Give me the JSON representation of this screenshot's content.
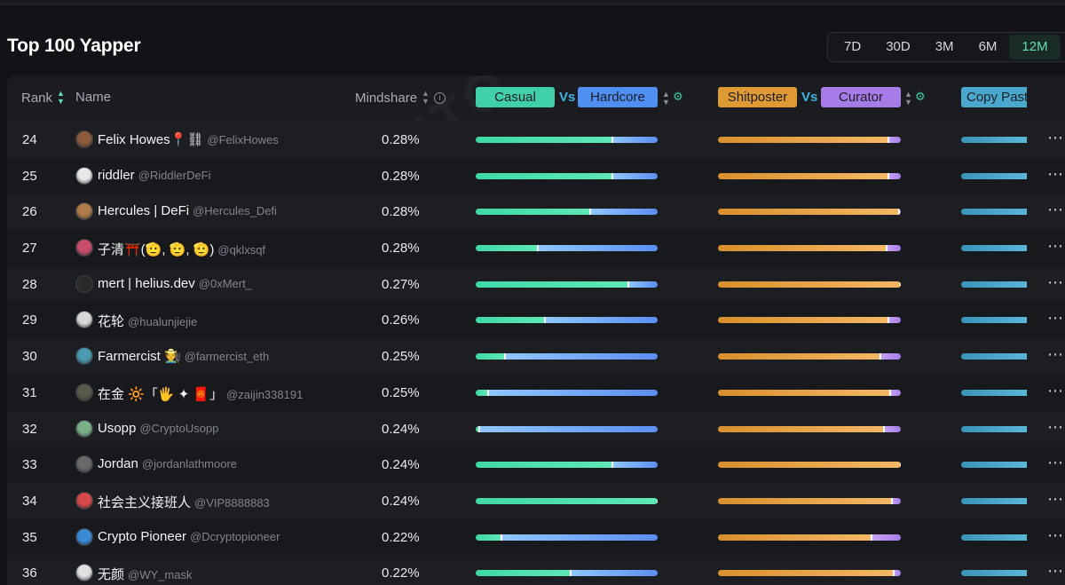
{
  "page": {
    "title": "Top 100 Yapper",
    "watermark": "KAITO"
  },
  "time_ranges": {
    "options": [
      "7D",
      "30D",
      "3M",
      "6M",
      "12M"
    ],
    "active": "12M"
  },
  "table": {
    "headers": {
      "rank": "Rank",
      "name": "Name",
      "mindshare": "Mindshare",
      "vs": "Vs",
      "casual": "Casual",
      "hardcore": "Hardcore",
      "shitposter": "Shitposter",
      "curator": "Curator",
      "copy_paste": "Copy Past"
    },
    "colors": {
      "casual": "#3fd0a8",
      "hardcore": "#4f8ff2",
      "shitposter": "#e09a33",
      "curator": "#a77ce8",
      "copy_paste": "#4aa8cf",
      "vs": "#3fb4e0",
      "active_range": "#5ee0b2"
    },
    "rows": [
      {
        "rank": "24",
        "display": "Felix Howes📍⛓",
        "handle": "@FelixHowes",
        "mindshare": "0.28%",
        "casual_frac": 0.75,
        "shit_frac": 0.93,
        "avatar_color": "#8a5a3a"
      },
      {
        "rank": "25",
        "display": "riddler",
        "handle": "@RiddlerDeFi",
        "mindshare": "0.28%",
        "casual_frac": 0.75,
        "shit_frac": 0.93,
        "avatar_color": "#e8e8e8"
      },
      {
        "rank": "26",
        "display": "Hercules | DeFi",
        "handle": "@Hercules_Defi",
        "mindshare": "0.28%",
        "casual_frac": 0.63,
        "shit_frac": 0.99,
        "avatar_color": "#b07a4a"
      },
      {
        "rank": "27",
        "display": "子清⛩️(🫡, 🫡, 🫡)",
        "handle": "@qklxsqf",
        "mindshare": "0.28%",
        "casual_frac": 0.34,
        "shit_frac": 0.92,
        "avatar_color": "#c74d6a"
      },
      {
        "rank": "28",
        "display": "mert | helius.dev",
        "handle": "@0xMert_",
        "mindshare": "0.27%",
        "casual_frac": 0.84,
        "shit_frac": 1.0,
        "avatar_color": "#2a2a2a"
      },
      {
        "rank": "29",
        "display": "花轮",
        "handle": "@hualunjiejie",
        "mindshare": "0.26%",
        "casual_frac": 0.38,
        "shit_frac": 0.93,
        "avatar_color": "#d8d8d8"
      },
      {
        "rank": "30",
        "display": "Farmercist 🧑‍🌾",
        "handle": "@farmercist_eth",
        "mindshare": "0.25%",
        "casual_frac": 0.16,
        "shit_frac": 0.89,
        "avatar_color": "#4a9ab0"
      },
      {
        "rank": "31",
        "display": "在金 🔆「🖐 ✦ 🧧」",
        "handle": "@zaijin338191",
        "mindshare": "0.25%",
        "casual_frac": 0.07,
        "shit_frac": 0.94,
        "avatar_color": "#5a5a4a"
      },
      {
        "rank": "32",
        "display": "Usopp",
        "handle": "@CryptoUsopp",
        "mindshare": "0.24%",
        "casual_frac": 0.02,
        "shit_frac": 0.91,
        "avatar_color": "#7ab088"
      },
      {
        "rank": "33",
        "display": "Jordan",
        "handle": "@jordanlathmoore",
        "mindshare": "0.24%",
        "casual_frac": 0.75,
        "shit_frac": 1.0,
        "avatar_color": "#6a6a6a"
      },
      {
        "rank": "34",
        "display": "社会主义接班人",
        "handle": "@VIP8888883",
        "mindshare": "0.24%",
        "casual_frac": 1.0,
        "shit_frac": 0.95,
        "avatar_color": "#d84a4a"
      },
      {
        "rank": "35",
        "display": "Crypto Pioneer",
        "handle": "@Dcryptopioneer",
        "mindshare": "0.22%",
        "casual_frac": 0.14,
        "shit_frac": 0.84,
        "avatar_color": "#3a8ad8"
      },
      {
        "rank": "36",
        "display": "无颜",
        "handle": "@WY_mask",
        "mindshare": "0.22%",
        "casual_frac": 0.52,
        "shit_frac": 0.96,
        "avatar_color": "#e0e0e0"
      }
    ]
  }
}
